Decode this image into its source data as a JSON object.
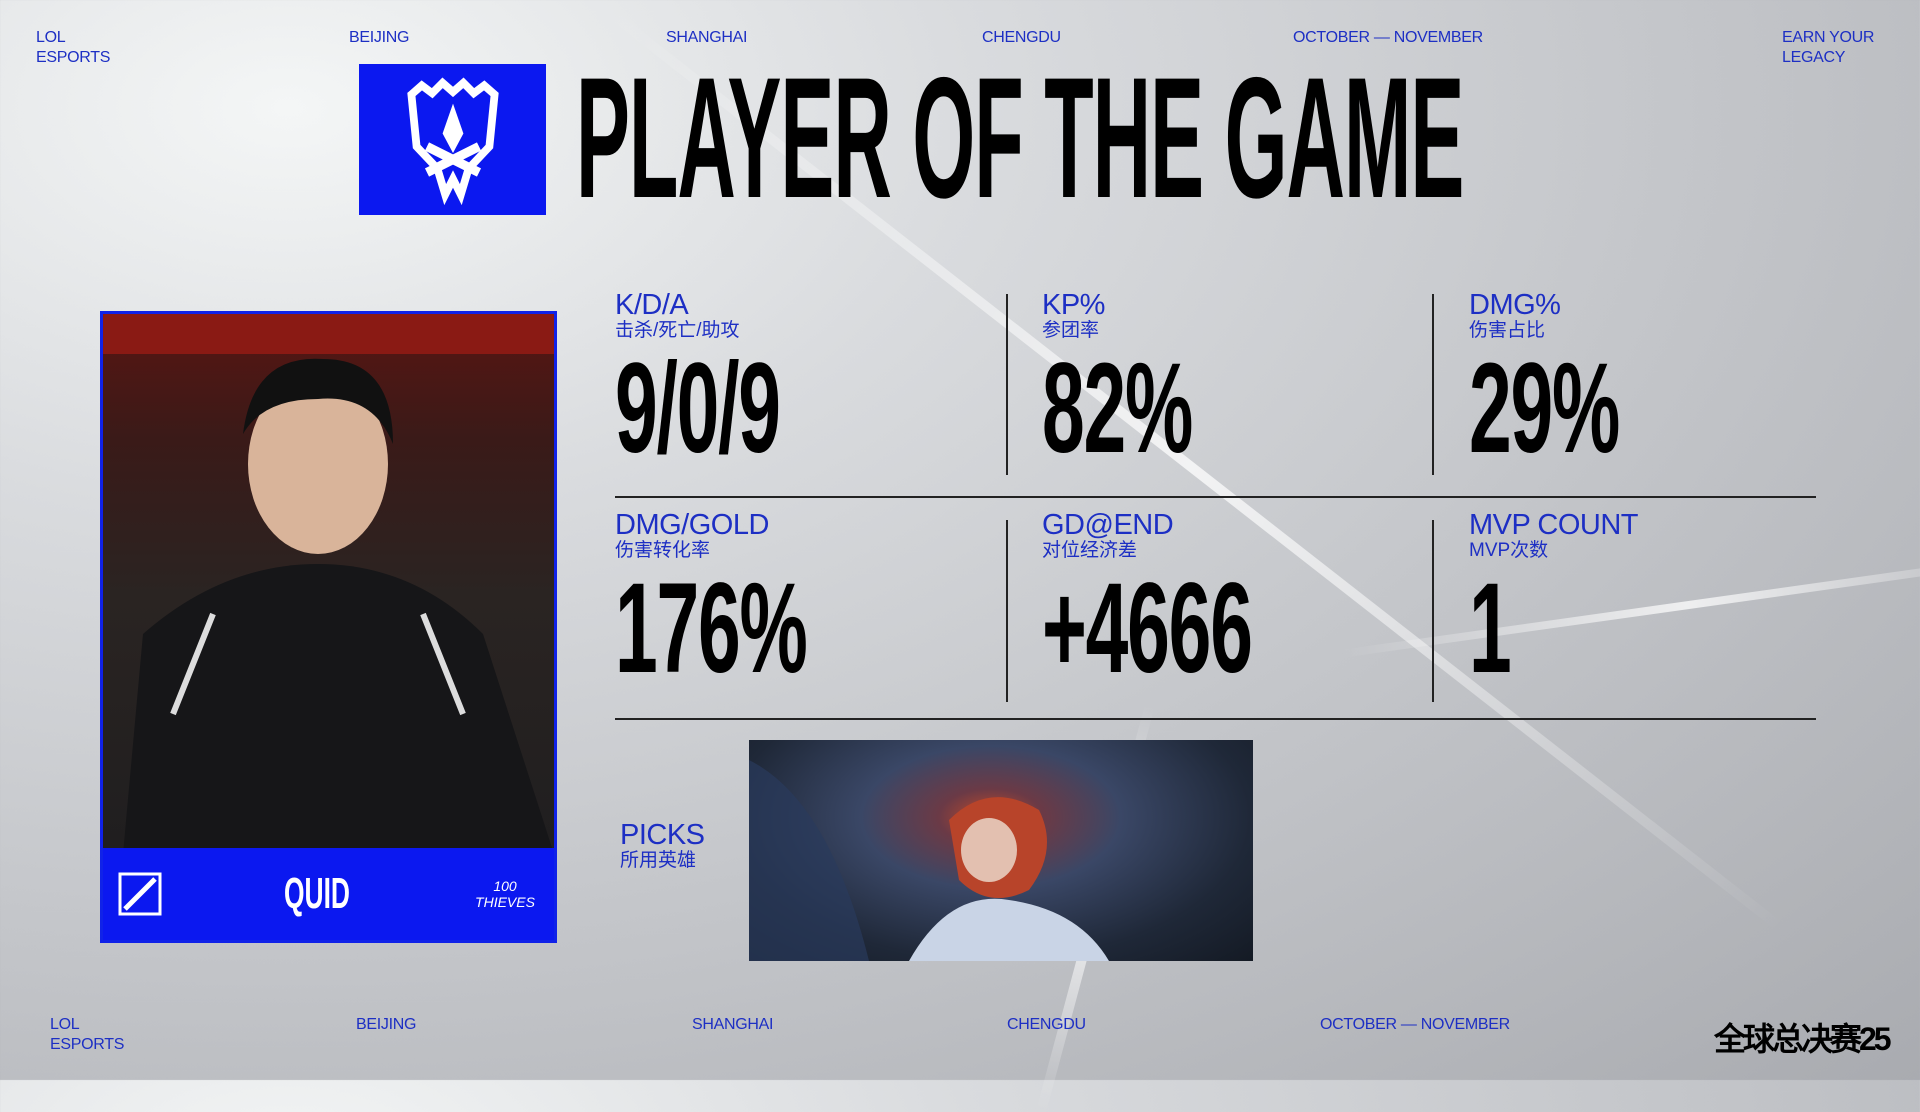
{
  "header_strip": {
    "lol": "LOL",
    "esports": "ESPORTS",
    "city1": "BEIJING",
    "city2": "SHANGHAI",
    "city3": "CHENGDU",
    "dates": "OCTOBER — NOVEMBER",
    "slogan1": "EARN YOUR",
    "slogan2": "LEGACY"
  },
  "title": "PLAYER OF THE GAME",
  "player": {
    "name": "QUID",
    "team_logo_text": "100 THIEVES"
  },
  "stats": [
    {
      "label": "K/D/A",
      "sub": "击杀/死亡/助攻",
      "value": "9/0/9"
    },
    {
      "label": "KP%",
      "sub": "参团率",
      "value": "82%"
    },
    {
      "label": "DMG%",
      "sub": "伤害占比",
      "value": "29%"
    },
    {
      "label": "DMG/GOLD",
      "sub": "伤害转化率",
      "value": "176%"
    },
    {
      "label": "GD@END",
      "sub": "对位经济差",
      "value": "+4666"
    },
    {
      "label": "MVP COUNT",
      "sub": "MVP次数",
      "value": "1"
    }
  ],
  "picks": {
    "label": "PICKS",
    "sub": "所用英雄"
  },
  "footer_strip": {
    "lol": "LOL",
    "esports": "ESPORTS",
    "city1": "BEIJING",
    "city2": "SHANGHAI",
    "city3": "CHENGDU",
    "dates": "OCTOBER — NOVEMBER",
    "event_logo": "全球总决赛25"
  },
  "colors": {
    "brand_blue": "#0b18f0",
    "label_blue": "#1d2fc4"
  }
}
